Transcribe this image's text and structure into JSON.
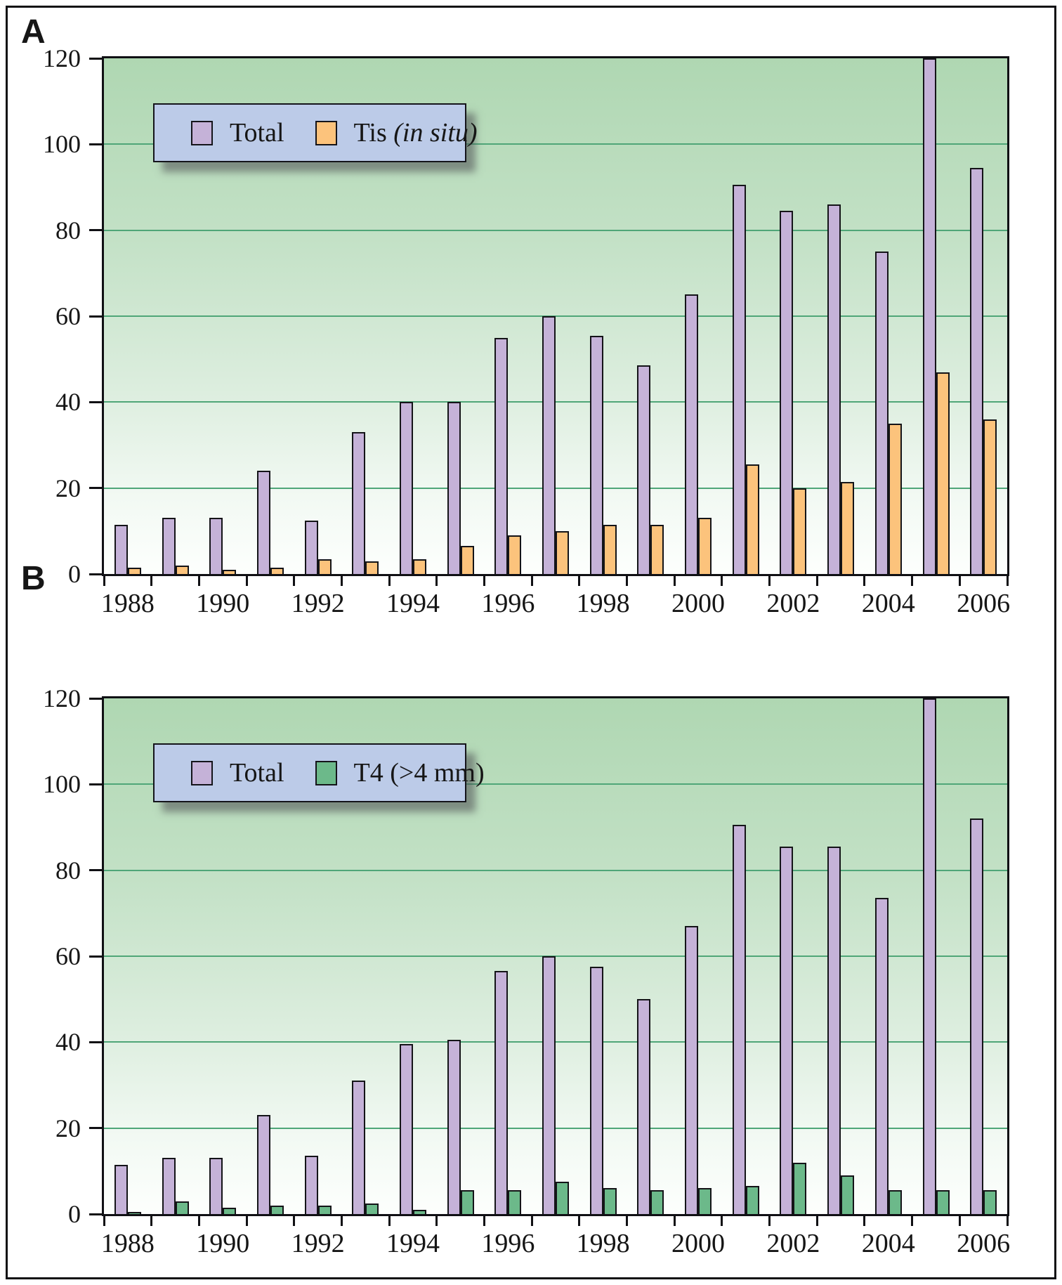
{
  "figure_labels": {
    "panel_a": "A",
    "panel_b": "B"
  },
  "colors": {
    "total_bar": "#c5b2d8",
    "tis_bar": "#fcc37c",
    "t4_bar": "#6cb98a",
    "legend_background": "#bccbe8",
    "gridline": "#4fa678",
    "axis": "#101014",
    "plot_bg_top": "#afd7b2",
    "plot_bg_bottom": "#fdfffd"
  },
  "chart_data": [
    {
      "type": "bar",
      "panel_label": "A",
      "categories": [
        "1988",
        "1989",
        "1990",
        "1991",
        "1992",
        "1993",
        "1994",
        "1995",
        "1996",
        "1997",
        "1998",
        "1999",
        "2000",
        "2001",
        "2002",
        "2003",
        "2004",
        "2005",
        "2006"
      ],
      "series": [
        {
          "name": "Total",
          "color": "#c5b2d8",
          "values": [
            11.5,
            13,
            13,
            24,
            12.5,
            33,
            40,
            40,
            55,
            60,
            55.5,
            48.5,
            65,
            90.5,
            84.5,
            86,
            75,
            120,
            94.5
          ]
        },
        {
          "name": "Tis (in situ)",
          "color": "#fcc37c",
          "values": [
            1.5,
            2,
            1,
            1.5,
            3.5,
            3,
            3.5,
            6.5,
            9,
            10,
            11.5,
            11.5,
            13,
            25.5,
            20,
            21.5,
            35,
            47,
            36
          ]
        }
      ],
      "legend": [
        {
          "text": "Total",
          "italic": "",
          "color": "#c5b2d8"
        },
        {
          "text": "Tis ",
          "italic": "(in situ)",
          "color": "#fcc37c"
        }
      ],
      "ylim": [
        0,
        120
      ],
      "yticks": [
        0,
        20,
        40,
        60,
        80,
        100,
        120
      ],
      "xtick_labels": [
        "1988",
        "1990",
        "1992",
        "1994",
        "1996",
        "1998",
        "2000",
        "2002",
        "2004",
        "2006"
      ],
      "grid": true,
      "legend_position": "top-left-inside",
      "note": "2005 Total bar is clipped at the 120 axis maximum"
    },
    {
      "type": "bar",
      "panel_label": "B",
      "categories": [
        "1988",
        "1989",
        "1990",
        "1991",
        "1992",
        "1993",
        "1994",
        "1995",
        "1996",
        "1997",
        "1998",
        "1999",
        "2000",
        "2001",
        "2002",
        "2003",
        "2004",
        "2005",
        "2006"
      ],
      "series": [
        {
          "name": "Total",
          "color": "#c5b2d8",
          "values": [
            11.5,
            13,
            13,
            23,
            13.5,
            31,
            39.5,
            40.5,
            56.5,
            60,
            57.5,
            50,
            67,
            90.5,
            85.5,
            85.5,
            73.5,
            120,
            92
          ]
        },
        {
          "name": "T4 (>4 mm)",
          "color": "#6cb98a",
          "values": [
            0.5,
            3,
            1.5,
            2,
            2,
            2.5,
            1,
            5.5,
            5.5,
            7.5,
            6,
            5.5,
            6,
            6.5,
            12,
            9,
            5.5,
            5.5,
            5.5
          ]
        }
      ],
      "legend": [
        {
          "text": "Total",
          "italic": "",
          "color": "#c5b2d8"
        },
        {
          "text": "T4 (>4 mm)",
          "italic": "",
          "color": "#6cb98a"
        }
      ],
      "ylim": [
        0,
        120
      ],
      "yticks": [
        0,
        20,
        40,
        60,
        80,
        100,
        120
      ],
      "xtick_labels": [
        "1988",
        "1990",
        "1992",
        "1994",
        "1996",
        "1998",
        "2000",
        "2002",
        "2004",
        "2006"
      ],
      "grid": true,
      "legend_position": "top-left-inside",
      "note": "2005 Total bar is clipped at the 120 axis maximum"
    }
  ]
}
